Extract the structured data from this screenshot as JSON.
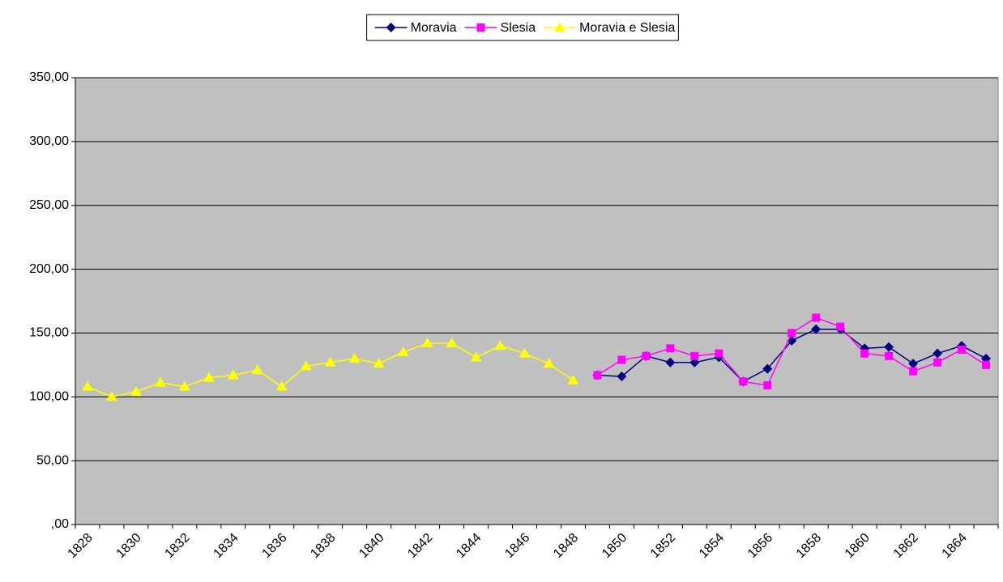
{
  "chart_data": {
    "type": "line",
    "categories": [
      "1828",
      null,
      "1830",
      null,
      "1832",
      null,
      "1834",
      null,
      "1836",
      null,
      "1838",
      null,
      "1840",
      null,
      "1842",
      null,
      "1844",
      null,
      "1846",
      null,
      "1848",
      null,
      "1850",
      null,
      "1852",
      null,
      "1854",
      null,
      "1856",
      null,
      "1858",
      null,
      "1860",
      null,
      "1862",
      null,
      "1864",
      null
    ],
    "series": [
      {
        "name": "Moravia",
        "color": "#000080",
        "values": [
          null,
          null,
          null,
          null,
          null,
          null,
          null,
          null,
          null,
          null,
          null,
          null,
          null,
          null,
          null,
          null,
          null,
          null,
          null,
          null,
          null,
          117,
          116,
          132,
          127,
          127,
          131,
          112,
          122,
          144,
          153,
          153,
          138,
          139,
          126,
          134,
          140,
          130
        ]
      },
      {
        "name": "Slesia",
        "color": "#ff00ff",
        "values": [
          null,
          null,
          null,
          null,
          null,
          null,
          null,
          null,
          null,
          null,
          null,
          null,
          null,
          null,
          null,
          null,
          null,
          null,
          null,
          null,
          null,
          117,
          129,
          132,
          138,
          132,
          134,
          112,
          109,
          150,
          162,
          155,
          134,
          132,
          120,
          127,
          137,
          125
        ]
      },
      {
        "name": "Moravia e Slesia",
        "color": "#ffff00",
        "values": [
          108,
          100,
          104,
          111,
          108,
          115,
          117,
          121,
          108,
          124,
          127,
          130,
          126,
          135,
          142,
          142,
          131,
          140,
          134,
          126,
          113,
          null,
          null,
          null,
          null,
          null,
          null,
          null,
          null,
          null,
          null,
          null,
          null,
          null,
          null,
          null,
          null,
          null
        ]
      }
    ],
    "ylim": [
      0,
      350
    ],
    "yticks": [
      {
        "value": 0,
        "label": ",00"
      },
      {
        "value": 50,
        "label": "50,00"
      },
      {
        "value": 100,
        "label": "100,00"
      },
      {
        "value": 150,
        "label": "150,00"
      },
      {
        "value": 200,
        "label": "200,00"
      },
      {
        "value": 250,
        "label": "250,00"
      },
      {
        "value": 300,
        "label": "300,00"
      },
      {
        "value": 350,
        "label": "350,00"
      }
    ],
    "grid": true,
    "legend": "top"
  }
}
